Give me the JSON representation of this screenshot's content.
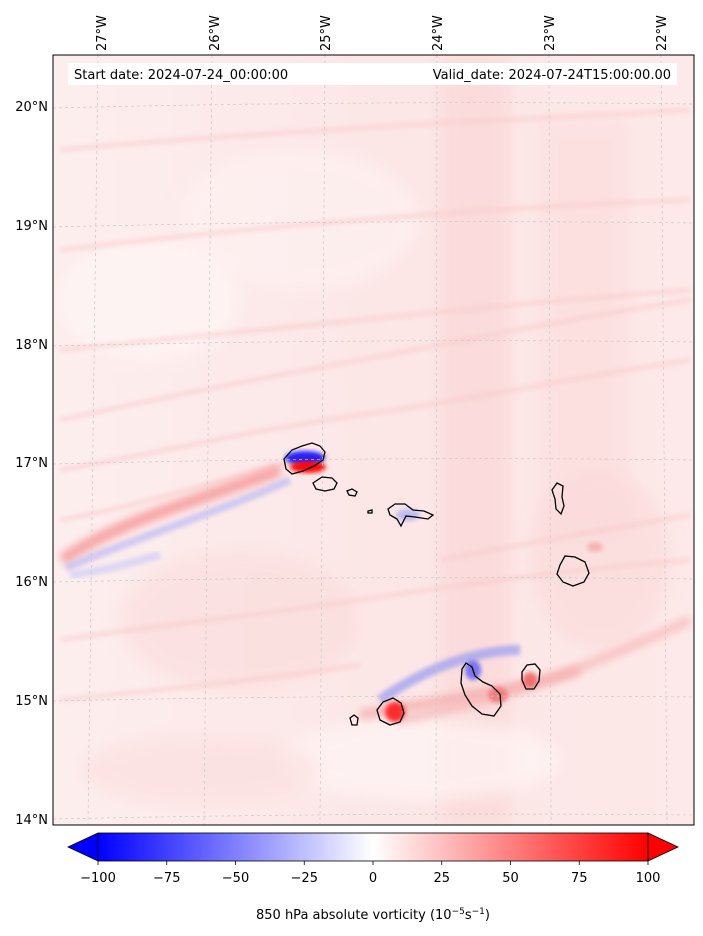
{
  "header": {
    "start_date": "Start date: 2024-07-24_00:00:00",
    "valid_date": "Valid_date: 2024-07-24T15:00:00.00"
  },
  "map": {
    "lon_labels": [
      "27°W",
      "26°W",
      "25°W",
      "24°W",
      "23°W",
      "22°W"
    ],
    "lat_labels": [
      "20°N",
      "19°N",
      "18°N",
      "17°N",
      "16°N",
      "15°N",
      "14°N"
    ],
    "gridlines": true,
    "field": "850 hPa absolute vorticity",
    "features": [
      "Santo Antão",
      "São Vicente",
      "Santa Luzia",
      "São Nicolau",
      "Sal",
      "Boa Vista",
      "Fogo",
      "Brava",
      "Santiago",
      "Maio"
    ]
  },
  "colorbar": {
    "ticks": [
      "−100",
      "−75",
      "−50",
      "−25",
      "0",
      "25",
      "50",
      "75",
      "100"
    ],
    "label": "850 hPa absolute vorticity (10",
    "label_exp1": "−5",
    "label_mid": "s",
    "label_exp2": "−1",
    "label_end": ")",
    "min": -100,
    "max": 100,
    "colormap": "bwr",
    "extend": "both",
    "color_low": "#0000ff",
    "color_mid": "#ffffff",
    "color_high": "#ff0000"
  }
}
